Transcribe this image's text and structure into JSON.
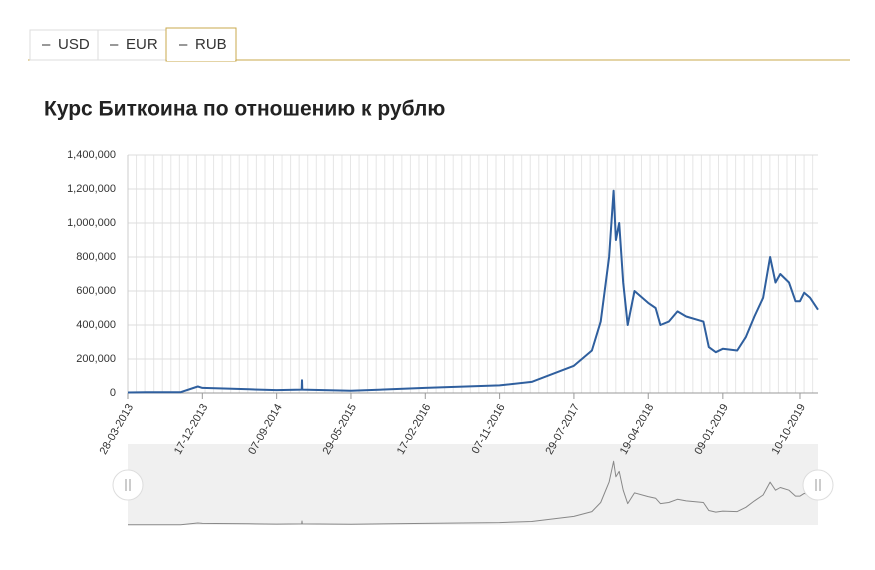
{
  "tabs": [
    "USD",
    "EUR",
    "RUB"
  ],
  "chart_data": {
    "type": "line",
    "title": "Курс Биткоина по отношению к рублю",
    "x": [
      "28-03-2013",
      "01-06-2013",
      "01-10-2013",
      "01-12-2013",
      "17-12-2013",
      "01-02-2014",
      "01-06-2014",
      "07-09-2014",
      "05-12-2014",
      "06-12-2014",
      "07-12-2014",
      "29-05-2015",
      "17-02-2016",
      "07-11-2016",
      "01-03-2017",
      "29-07-2017",
      "01-10-2017",
      "01-11-2017",
      "01-12-2017",
      "17-12-2017",
      "25-12-2017",
      "06-01-2018",
      "20-01-2018",
      "05-02-2018",
      "01-03-2018",
      "19-04-2018",
      "15-05-2018",
      "01-06-2018",
      "01-07-2018",
      "01-08-2018",
      "01-09-2018",
      "01-11-2018",
      "20-11-2018",
      "15-12-2018",
      "09-01-2019",
      "01-03-2019",
      "01-04-2019",
      "01-05-2019",
      "01-06-2019",
      "26-06-2019",
      "15-07-2019",
      "01-08-2019",
      "01-09-2019",
      "24-09-2019",
      "10-10-2019",
      "25-10-2019",
      "15-11-2019",
      "13-12-2019"
    ],
    "series": [
      {
        "name": "RUB",
        "color": "#2f5f9e",
        "values": [
          3000,
          4000,
          4500,
          38000,
          30000,
          28000,
          22000,
          17000,
          20000,
          75000,
          20000,
          13000,
          30000,
          45000,
          65000,
          160000,
          250000,
          420000,
          800000,
          1190000,
          900000,
          1000000,
          650000,
          400000,
          600000,
          530000,
          500000,
          400000,
          420000,
          480000,
          450000,
          420000,
          270000,
          240000,
          260000,
          250000,
          330000,
          450000,
          560000,
          800000,
          650000,
          700000,
          650000,
          540000,
          540000,
          590000,
          560000,
          490000
        ]
      }
    ],
    "xlim": [
      "28-03-2013",
      "13-12-2019"
    ],
    "xticks": [
      "28-03-2013",
      "17-12-2013",
      "07-09-2014",
      "29-05-2015",
      "17-02-2016",
      "07-11-2016",
      "29-07-2017",
      "19-04-2018",
      "09-01-2019",
      "10-10-2019"
    ],
    "ylim": [
      0,
      1400000
    ],
    "yticks": [
      0,
      {
        "value": 200000,
        "label": "200,000"
      },
      {
        "value": 400000,
        "label": "400,000"
      },
      {
        "value": 600000,
        "label": "600,000"
      },
      {
        "value": 800000,
        "label": "800,000"
      },
      {
        "value": 1000000,
        "label": "1,000,000"
      },
      {
        "value": 1200000,
        "label": "1,200,000"
      },
      {
        "value": 1400000,
        "label": "1,400,000"
      }
    ],
    "grid": true
  }
}
